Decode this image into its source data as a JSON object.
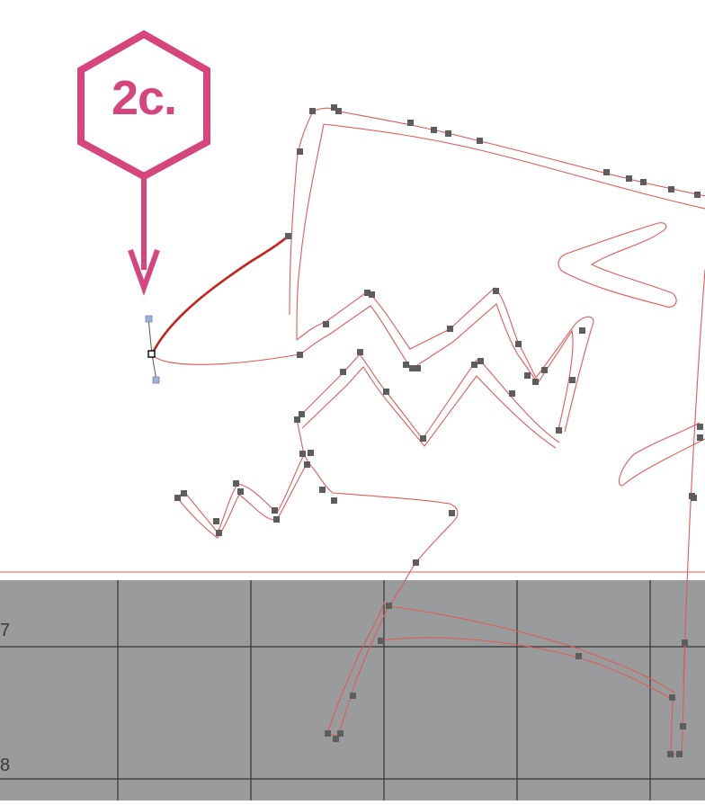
{
  "annotation": {
    "step_label": "2c.",
    "accent_color": "#d6457e"
  },
  "artboard": {
    "row_labels": [
      "7",
      "8"
    ],
    "grid_color": "#333333",
    "mat_color": "#9a9b9d",
    "path_color": "#e05a5a",
    "selected_path_color": "#c9221c"
  },
  "tool": {
    "selected_anchor": "anchor-point",
    "handles": [
      "direction-handle-top",
      "direction-handle-bottom"
    ]
  }
}
